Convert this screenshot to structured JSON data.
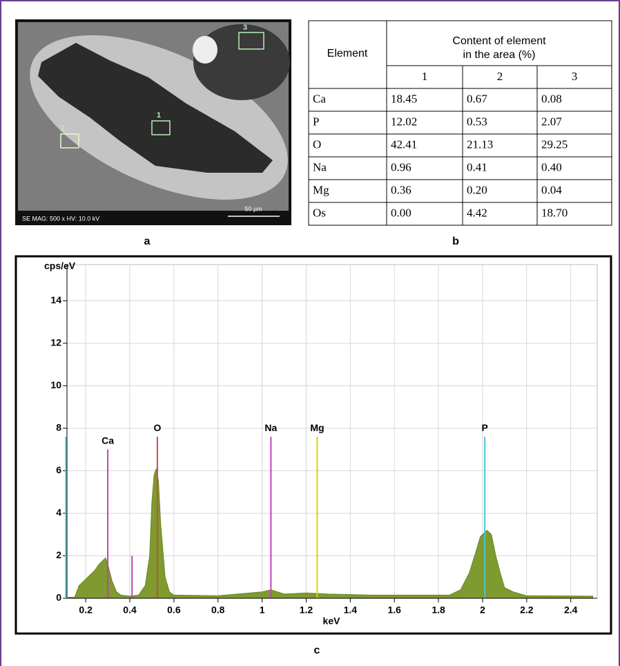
{
  "panel_a": {
    "info": "SE MAG: 500 x HV: 10.0 kV",
    "scale_bar": "50 µm",
    "regions": [
      "1",
      "2",
      "3"
    ],
    "caption": "a"
  },
  "panel_b": {
    "caption": "b",
    "table": {
      "header": [
        "Element",
        "Content of element in the area (%)"
      ],
      "subheader": [
        "1",
        "2",
        "3"
      ],
      "rows": [
        [
          "Ca",
          "18.45",
          "0.67",
          "0.08"
        ],
        [
          "P",
          "12.02",
          "0.53",
          "2.07"
        ],
        [
          "O",
          "42.41",
          "21.13",
          "29.25"
        ],
        [
          "Na",
          "0.96",
          "0.41",
          "0.40"
        ],
        [
          "Mg",
          "0.36",
          "0.20",
          "0.04"
        ],
        [
          "Os",
          "0.00",
          "4.42",
          "18.70"
        ]
      ]
    }
  },
  "panel_c": {
    "caption": "c"
  },
  "chart_data": {
    "type": "area",
    "y_label": "cps/eV",
    "x_label": "keV",
    "color": "#7f9a2e",
    "grid": true,
    "x": [
      0.12,
      0.15,
      0.17,
      0.2,
      0.22,
      0.24,
      0.26,
      0.28,
      0.29,
      0.3,
      0.32,
      0.34,
      0.36,
      0.4,
      0.44,
      0.47,
      0.49,
      0.5,
      0.51,
      0.52,
      0.53,
      0.54,
      0.56,
      0.58,
      0.6,
      0.8,
      1.0,
      1.04,
      1.1,
      1.2,
      1.3,
      1.5,
      1.7,
      1.85,
      1.9,
      1.94,
      1.97,
      1.99,
      2.0,
      2.02,
      2.04,
      2.06,
      2.08,
      2.1,
      2.14,
      2.2,
      2.5
    ],
    "values": [
      0.05,
      0.05,
      0.6,
      0.9,
      1.1,
      1.3,
      1.6,
      1.8,
      1.9,
      1.6,
      0.8,
      0.3,
      0.15,
      0.1,
      0.15,
      0.6,
      2.0,
      4.5,
      5.8,
      6.1,
      5.5,
      3.5,
      1.0,
      0.3,
      0.15,
      0.12,
      0.3,
      0.4,
      0.2,
      0.25,
      0.2,
      0.15,
      0.15,
      0.15,
      0.4,
      1.2,
      2.2,
      2.9,
      3.0,
      3.2,
      3.0,
      2.0,
      1.2,
      0.5,
      0.3,
      0.12,
      0.1
    ],
    "lines": [
      {
        "label": null,
        "x": 0.11,
        "height": 7.6,
        "color": "#4fc3d3"
      },
      {
        "label": "Ca",
        "x": 0.3,
        "height": 7.0,
        "color": "#c040c0"
      },
      {
        "label": null,
        "x": 0.41,
        "height": 2.0,
        "color": "#c040c0"
      },
      {
        "label": "O",
        "x": 0.525,
        "height": 7.6,
        "color": "#c0504d"
      },
      {
        "label": "Na",
        "x": 1.04,
        "height": 7.6,
        "color": "#c040c0"
      },
      {
        "label": "Mg",
        "x": 1.25,
        "height": 7.6,
        "color": "#d4d400"
      },
      {
        "label": "P",
        "x": 2.01,
        "height": 7.6,
        "color": "#4fc3d3"
      }
    ],
    "xlim": [
      0.115,
      2.52
    ],
    "ylim": [
      0,
      15.7
    ],
    "xticks": [
      0.2,
      0.4,
      0.6,
      0.8,
      1.0,
      1.2,
      1.4,
      1.6,
      1.8,
      2.0,
      2.2,
      2.4
    ],
    "yticks": [
      0,
      2,
      4,
      6,
      8,
      10,
      12,
      14
    ]
  }
}
